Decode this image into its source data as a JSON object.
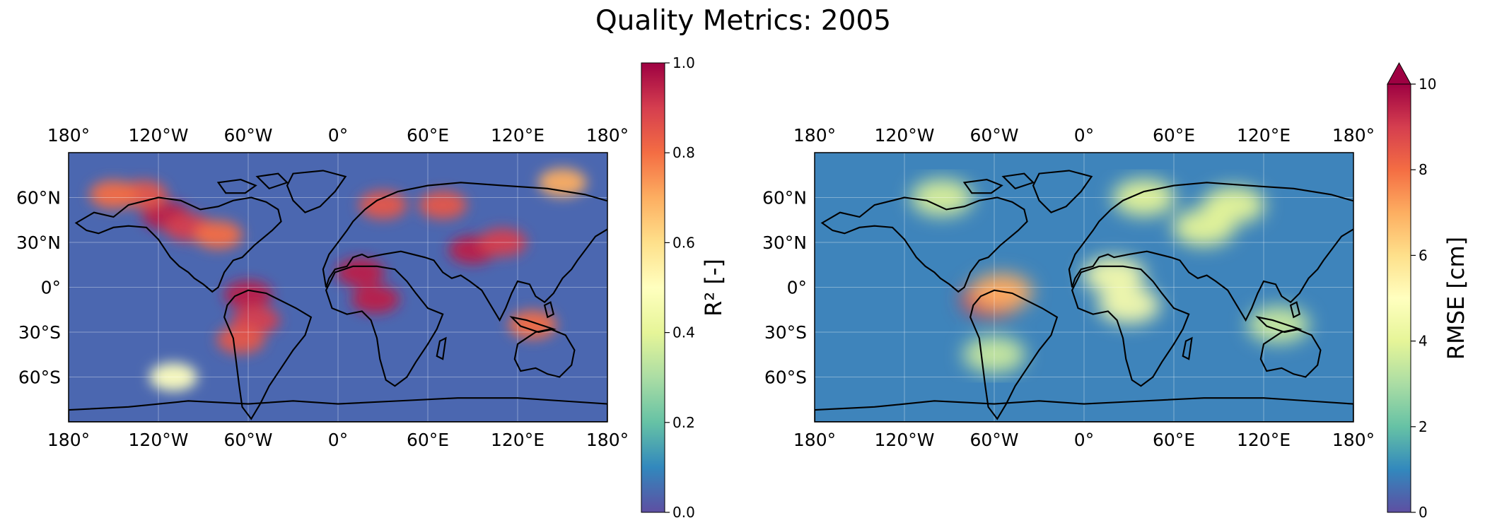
{
  "title": "Quality Metrics: 2005",
  "lon_ticks": [
    "180°",
    "120°W",
    "60°W",
    "0°",
    "60°E",
    "120°E",
    "180°"
  ],
  "lat_ticks": [
    "60°N",
    "30°N",
    "0°",
    "30°S",
    "60°S"
  ],
  "maps": [
    {
      "id": "r2",
      "colorbar": {
        "label": "R² [-]",
        "range": [
          0,
          1
        ],
        "ticks": [
          "0.0",
          "0.2",
          "0.4",
          "0.6",
          "0.8",
          "1.0"
        ],
        "colormap": "Spectral_r",
        "extend": "neither"
      },
      "hotspots": [
        {
          "lon": -115,
          "lat": 48,
          "v": 0.95
        },
        {
          "lon": -130,
          "lat": 62,
          "v": 0.85
        },
        {
          "lon": -100,
          "lat": 40,
          "v": 0.9
        },
        {
          "lon": -80,
          "lat": 35,
          "v": 0.8
        },
        {
          "lon": -60,
          "lat": -5,
          "v": 0.95
        },
        {
          "lon": -55,
          "lat": -22,
          "v": 0.9
        },
        {
          "lon": -65,
          "lat": -35,
          "v": 0.85
        },
        {
          "lon": 15,
          "lat": 10,
          "v": 0.95
        },
        {
          "lon": 25,
          "lat": -8,
          "v": 0.95
        },
        {
          "lon": 30,
          "lat": 55,
          "v": 0.85
        },
        {
          "lon": 70,
          "lat": 55,
          "v": 0.85
        },
        {
          "lon": 90,
          "lat": 25,
          "v": 0.95
        },
        {
          "lon": 110,
          "lat": 30,
          "v": 0.9
        },
        {
          "lon": 130,
          "lat": -25,
          "v": 0.8
        },
        {
          "lon": -150,
          "lat": 62,
          "v": 0.8
        },
        {
          "lon": 150,
          "lat": 70,
          "v": 0.7
        },
        {
          "lon": -110,
          "lat": -60,
          "v": 0.5
        }
      ]
    },
    {
      "id": "rmse",
      "colorbar": {
        "label": "RMSE [cm]",
        "range": [
          0,
          10
        ],
        "ticks": [
          "0",
          "2",
          "4",
          "6",
          "8",
          "10"
        ],
        "colormap": "Spectral_r",
        "extend": "max"
      },
      "hotspots": [
        {
          "lon": -62,
          "lat": -8,
          "v": 9
        },
        {
          "lon": -55,
          "lat": -3,
          "v": 7
        },
        {
          "lon": 20,
          "lat": 8,
          "v": 4.5
        },
        {
          "lon": 30,
          "lat": -12,
          "v": 4.5
        },
        {
          "lon": 40,
          "lat": 60,
          "v": 4
        },
        {
          "lon": 80,
          "lat": 40,
          "v": 4
        },
        {
          "lon": 100,
          "lat": 55,
          "v": 4
        },
        {
          "lon": -95,
          "lat": 60,
          "v": 3.8
        },
        {
          "lon": 130,
          "lat": -25,
          "v": 3.5
        },
        {
          "lon": -60,
          "lat": -45,
          "v": 3.5
        }
      ]
    }
  ]
}
